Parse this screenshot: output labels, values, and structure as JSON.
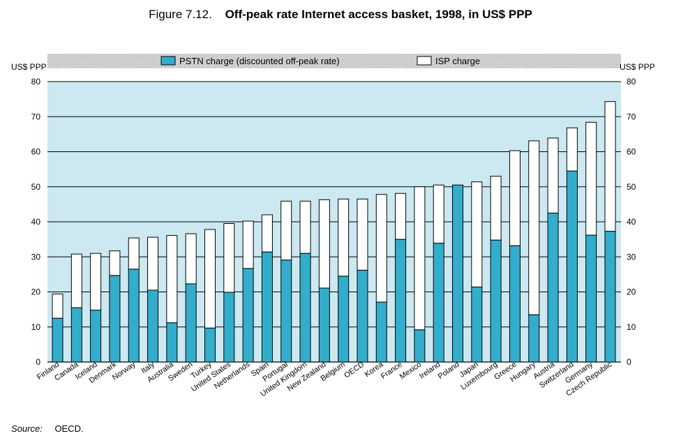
{
  "title": {
    "figure_number": "Figure 7.12.",
    "main": "Off-peak rate Internet access basket, 1998, in US$ PPP"
  },
  "source": {
    "label": "Source:",
    "text": "OECD."
  },
  "chart_data": {
    "type": "bar",
    "stacked": true,
    "categories": [
      "Finland",
      "Canada",
      "Iceland",
      "Denmark",
      "Norway",
      "Italy",
      "Australia",
      "Sweden",
      "Turkey",
      "United States",
      "Netherlands",
      "Spain",
      "Portugal",
      "United Kingdom",
      "New Zealand",
      "Belgium",
      "OECD",
      "Korea",
      "France",
      "Mexico",
      "Ireland",
      "Poland",
      "Japan",
      "Luxembourg",
      "Greece",
      "Hungary",
      "Austria",
      "Switzerland",
      "Germany",
      "Czech Republic"
    ],
    "series": [
      {
        "name": "PSTN charge (discounted off-peak rate)",
        "color": "#33adcc",
        "values": [
          12.5,
          15.5,
          14.8,
          24.7,
          26.5,
          20.5,
          11.2,
          22.3,
          9.7,
          19.9,
          26.7,
          31.4,
          29.1,
          31.0,
          21.1,
          24.5,
          26.2,
          17.1,
          35.0,
          9.2,
          33.9,
          50.5,
          21.4,
          34.8,
          33.2,
          13.5,
          42.5,
          54.5,
          36.2,
          37.3
        ]
      },
      {
        "name": "ISP charge",
        "color": "#ffffff",
        "values": [
          6.9,
          15.3,
          16.2,
          7.0,
          8.9,
          15.1,
          24.9,
          14.3,
          28.1,
          19.6,
          13.5,
          10.6,
          16.8,
          14.9,
          25.2,
          22.0,
          20.3,
          30.7,
          13.1,
          40.8,
          16.6,
          0.0,
          30.0,
          18.2,
          27.1,
          49.6,
          21.4,
          12.3,
          32.2,
          37.0
        ]
      }
    ],
    "ylabel": "US$ PPP",
    "y2label": "US$ PPP",
    "ylim": [
      0,
      80
    ],
    "yticks": [
      0,
      10,
      20,
      30,
      40,
      50,
      60,
      70,
      80
    ],
    "grid": true,
    "legend_position": "top",
    "plot_background": "#cce8f0"
  }
}
